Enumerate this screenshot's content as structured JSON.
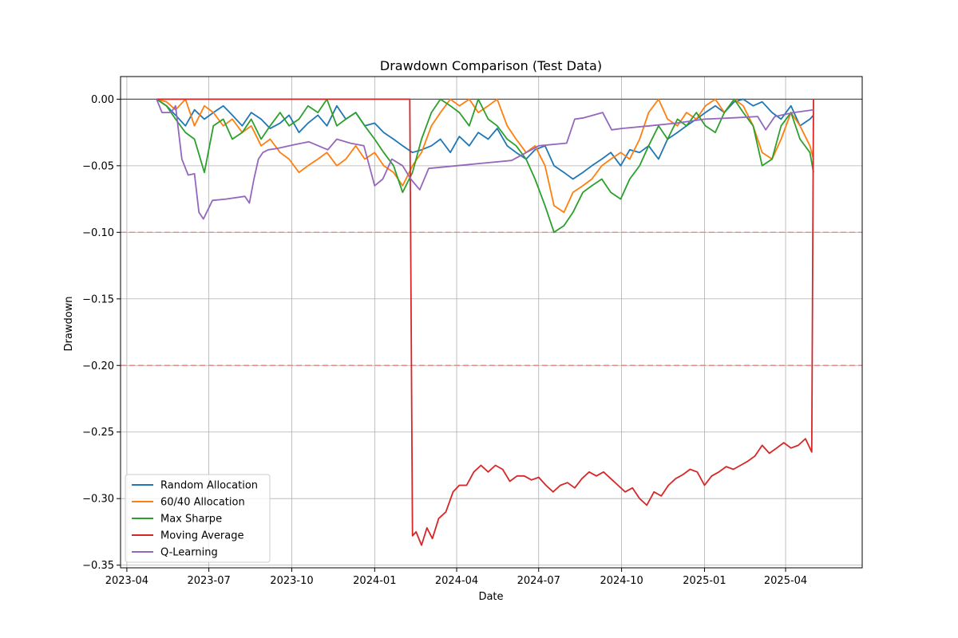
{
  "chart_data": {
    "type": "line",
    "title": "Drawdown Comparison (Test Data)",
    "xlabel": "Date",
    "ylabel": "Drawdown",
    "xlim": [
      "2023-03-25",
      "2025-06-25"
    ],
    "ylim": [
      -0.352,
      0.017
    ],
    "x_ticks": [
      {
        "date": "2023-04-01",
        "label": "2023-04"
      },
      {
        "date": "2023-07-01",
        "label": "2023-07"
      },
      {
        "date": "2023-10-01",
        "label": "2023-10"
      },
      {
        "date": "2024-01-01",
        "label": "2024-01"
      },
      {
        "date": "2024-04-01",
        "label": "2024-04"
      },
      {
        "date": "2024-07-01",
        "label": "2024-07"
      },
      {
        "date": "2024-10-01",
        "label": "2024-10"
      },
      {
        "date": "2025-01-01",
        "label": "2025-01"
      },
      {
        "date": "2025-04-01",
        "label": "2025-04"
      }
    ],
    "y_ticks": [
      {
        "value": 0.0,
        "label": "0.00"
      },
      {
        "value": -0.05,
        "label": "−0.05"
      },
      {
        "value": -0.1,
        "label": "−0.10"
      },
      {
        "value": -0.15,
        "label": "−0.15"
      },
      {
        "value": -0.2,
        "label": "−0.20"
      },
      {
        "value": -0.25,
        "label": "−0.25"
      },
      {
        "value": -0.3,
        "label": "−0.30"
      },
      {
        "value": -0.35,
        "label": "−0.35"
      }
    ],
    "grid": true,
    "legend_position": "lower-left",
    "reference_lines": [
      {
        "value": 0.0,
        "color": "#555555",
        "style": "solid"
      },
      {
        "value": -0.1,
        "color": "#e8898b",
        "style": "dashed"
      },
      {
        "value": -0.2,
        "color": "#e8898b",
        "style": "dashed"
      }
    ],
    "series": [
      {
        "name": "Random Allocation",
        "color": "#1f77b4",
        "x": [
          "2023-05-04",
          "2023-05-15",
          "2023-05-25",
          "2023-06-05",
          "2023-06-15",
          "2023-06-26",
          "2023-07-06",
          "2023-07-17",
          "2023-07-27",
          "2023-08-07",
          "2023-08-17",
          "2023-08-28",
          "2023-09-07",
          "2023-09-18",
          "2023-09-28",
          "2023-10-09",
          "2023-10-19",
          "2023-10-30",
          "2023-11-09",
          "2023-11-20",
          "2023-11-30",
          "2023-12-11",
          "2023-12-21",
          "2024-01-01",
          "2024-01-11",
          "2024-01-22",
          "2024-02-01",
          "2024-02-12",
          "2024-02-22",
          "2024-03-04",
          "2024-03-14",
          "2024-03-25",
          "2024-04-04",
          "2024-04-15",
          "2024-04-25",
          "2024-05-06",
          "2024-05-16",
          "2024-05-27",
          "2024-06-06",
          "2024-06-17",
          "2024-06-27",
          "2024-07-08",
          "2024-07-18",
          "2024-07-29",
          "2024-08-08",
          "2024-08-19",
          "2024-08-29",
          "2024-09-09",
          "2024-09-19",
          "2024-09-30",
          "2024-10-10",
          "2024-10-21",
          "2024-10-31",
          "2024-11-11",
          "2024-11-21",
          "2024-12-02",
          "2024-12-12",
          "2024-12-23",
          "2025-01-02",
          "2025-01-13",
          "2025-01-23",
          "2025-02-03",
          "2025-02-13",
          "2025-02-24",
          "2025-03-06",
          "2025-03-17",
          "2025-03-27",
          "2025-04-07",
          "2025-04-17",
          "2025-04-28",
          "2025-05-02"
        ],
        "values": [
          0.0,
          -0.005,
          -0.012,
          -0.02,
          -0.008,
          -0.015,
          -0.01,
          -0.005,
          -0.012,
          -0.02,
          -0.01,
          -0.015,
          -0.022,
          -0.018,
          -0.012,
          -0.025,
          -0.018,
          -0.012,
          -0.02,
          -0.005,
          -0.015,
          -0.01,
          -0.02,
          -0.018,
          -0.025,
          -0.03,
          -0.035,
          -0.04,
          -0.038,
          -0.035,
          -0.03,
          -0.04,
          -0.028,
          -0.035,
          -0.025,
          -0.03,
          -0.022,
          -0.035,
          -0.04,
          -0.045,
          -0.038,
          -0.035,
          -0.05,
          -0.055,
          -0.06,
          -0.055,
          -0.05,
          -0.045,
          -0.04,
          -0.05,
          -0.038,
          -0.04,
          -0.035,
          -0.045,
          -0.03,
          -0.025,
          -0.02,
          -0.015,
          -0.01,
          -0.005,
          -0.01,
          -0.002,
          0.0,
          -0.005,
          -0.002,
          -0.01,
          -0.015,
          -0.005,
          -0.02,
          -0.015,
          -0.012
        ]
      },
      {
        "name": "60/40 Allocation",
        "color": "#ff7f0e",
        "x": [
          "2023-05-04",
          "2023-05-15",
          "2023-05-25",
          "2023-06-05",
          "2023-06-15",
          "2023-06-26",
          "2023-07-06",
          "2023-07-17",
          "2023-07-27",
          "2023-08-07",
          "2023-08-17",
          "2023-08-28",
          "2023-09-07",
          "2023-09-18",
          "2023-09-28",
          "2023-10-09",
          "2023-10-19",
          "2023-10-30",
          "2023-11-09",
          "2023-11-20",
          "2023-11-30",
          "2023-12-11",
          "2023-12-21",
          "2024-01-01",
          "2024-01-11",
          "2024-01-22",
          "2024-02-01",
          "2024-02-12",
          "2024-02-22",
          "2024-03-04",
          "2024-03-14",
          "2024-03-25",
          "2024-04-04",
          "2024-04-15",
          "2024-04-25",
          "2024-05-06",
          "2024-05-16",
          "2024-05-27",
          "2024-06-06",
          "2024-06-17",
          "2024-06-27",
          "2024-07-08",
          "2024-07-18",
          "2024-07-29",
          "2024-08-08",
          "2024-08-19",
          "2024-08-29",
          "2024-09-09",
          "2024-09-19",
          "2024-09-30",
          "2024-10-10",
          "2024-10-21",
          "2024-10-31",
          "2024-11-11",
          "2024-11-21",
          "2024-12-02",
          "2024-12-12",
          "2024-12-23",
          "2025-01-02",
          "2025-01-13",
          "2025-01-23",
          "2025-02-03",
          "2025-02-13",
          "2025-02-24",
          "2025-03-06",
          "2025-03-17",
          "2025-03-27",
          "2025-04-07",
          "2025-04-17",
          "2025-04-28",
          "2025-05-02"
        ],
        "values": [
          0.0,
          -0.002,
          -0.008,
          0.0,
          -0.02,
          -0.005,
          -0.01,
          -0.02,
          -0.015,
          -0.025,
          -0.02,
          -0.035,
          -0.03,
          -0.04,
          -0.045,
          -0.055,
          -0.05,
          -0.045,
          -0.04,
          -0.05,
          -0.045,
          -0.035,
          -0.045,
          -0.04,
          -0.05,
          -0.055,
          -0.065,
          -0.05,
          -0.04,
          -0.02,
          -0.01,
          0.0,
          -0.005,
          0.0,
          -0.01,
          -0.005,
          0.0,
          -0.02,
          -0.03,
          -0.04,
          -0.035,
          -0.05,
          -0.08,
          -0.085,
          -0.07,
          -0.065,
          -0.06,
          -0.05,
          -0.045,
          -0.04,
          -0.045,
          -0.03,
          -0.01,
          0.0,
          -0.015,
          -0.02,
          -0.01,
          -0.015,
          -0.005,
          0.0,
          -0.01,
          0.0,
          -0.005,
          -0.02,
          -0.04,
          -0.045,
          -0.03,
          -0.01,
          -0.02,
          -0.035,
          -0.045
        ]
      },
      {
        "name": "Max Sharpe",
        "color": "#2ca02c",
        "x": [
          "2023-05-04",
          "2023-05-15",
          "2023-05-25",
          "2023-06-05",
          "2023-06-15",
          "2023-06-26",
          "2023-07-06",
          "2023-07-17",
          "2023-07-27",
          "2023-08-07",
          "2023-08-17",
          "2023-08-28",
          "2023-09-07",
          "2023-09-18",
          "2023-09-28",
          "2023-10-09",
          "2023-10-19",
          "2023-10-30",
          "2023-11-09",
          "2023-11-20",
          "2023-11-30",
          "2023-12-11",
          "2023-12-21",
          "2024-01-01",
          "2024-01-11",
          "2024-01-22",
          "2024-02-01",
          "2024-02-12",
          "2024-02-22",
          "2024-03-04",
          "2024-03-14",
          "2024-03-25",
          "2024-04-04",
          "2024-04-15",
          "2024-04-25",
          "2024-05-06",
          "2024-05-16",
          "2024-05-27",
          "2024-06-06",
          "2024-06-17",
          "2024-06-27",
          "2024-07-08",
          "2024-07-18",
          "2024-07-29",
          "2024-08-08",
          "2024-08-19",
          "2024-08-29",
          "2024-09-09",
          "2024-09-19",
          "2024-09-30",
          "2024-10-10",
          "2024-10-21",
          "2024-10-31",
          "2024-11-11",
          "2024-11-21",
          "2024-12-02",
          "2024-12-12",
          "2024-12-23",
          "2025-01-02",
          "2025-01-13",
          "2025-01-23",
          "2025-02-03",
          "2025-02-13",
          "2025-02-24",
          "2025-03-06",
          "2025-03-17",
          "2025-03-27",
          "2025-04-07",
          "2025-04-17",
          "2025-04-28",
          "2025-05-02"
        ],
        "values": [
          0.0,
          -0.005,
          -0.015,
          -0.025,
          -0.03,
          -0.055,
          -0.02,
          -0.015,
          -0.03,
          -0.025,
          -0.015,
          -0.03,
          -0.02,
          -0.01,
          -0.02,
          -0.015,
          -0.005,
          -0.01,
          0.0,
          -0.02,
          -0.015,
          -0.01,
          -0.02,
          -0.03,
          -0.04,
          -0.05,
          -0.07,
          -0.055,
          -0.03,
          -0.01,
          0.0,
          -0.005,
          -0.01,
          -0.02,
          0.0,
          -0.015,
          -0.02,
          -0.03,
          -0.035,
          -0.045,
          -0.06,
          -0.08,
          -0.1,
          -0.095,
          -0.085,
          -0.07,
          -0.065,
          -0.06,
          -0.07,
          -0.075,
          -0.06,
          -0.05,
          -0.035,
          -0.02,
          -0.03,
          -0.015,
          -0.02,
          -0.01,
          -0.02,
          -0.025,
          -0.01,
          0.0,
          -0.01,
          -0.02,
          -0.05,
          -0.045,
          -0.02,
          -0.01,
          -0.03,
          -0.04,
          -0.055
        ]
      },
      {
        "name": "Moving Average",
        "color": "#d62728",
        "x": [
          "2023-05-04",
          "2024-02-09",
          "2024-02-12",
          "2024-02-16",
          "2024-02-22",
          "2024-02-28",
          "2024-03-05",
          "2024-03-12",
          "2024-03-20",
          "2024-03-28",
          "2024-04-04",
          "2024-04-12",
          "2024-04-20",
          "2024-04-28",
          "2024-05-06",
          "2024-05-14",
          "2024-05-22",
          "2024-05-30",
          "2024-06-07",
          "2024-06-15",
          "2024-06-23",
          "2024-07-01",
          "2024-07-09",
          "2024-07-17",
          "2024-07-25",
          "2024-08-02",
          "2024-08-10",
          "2024-08-18",
          "2024-08-26",
          "2024-09-03",
          "2024-09-11",
          "2024-09-19",
          "2024-09-27",
          "2024-10-05",
          "2024-10-13",
          "2024-10-21",
          "2024-10-29",
          "2024-11-06",
          "2024-11-14",
          "2024-11-22",
          "2024-11-30",
          "2024-12-08",
          "2024-12-16",
          "2024-12-24",
          "2025-01-01",
          "2025-01-09",
          "2025-01-17",
          "2025-01-25",
          "2025-02-02",
          "2025-02-10",
          "2025-02-18",
          "2025-02-26",
          "2025-03-06",
          "2025-03-14",
          "2025-03-22",
          "2025-03-30",
          "2025-04-07",
          "2025-04-15",
          "2025-04-23",
          "2025-04-30",
          "2025-05-02"
        ],
        "values": [
          0.0,
          0.0,
          -0.328,
          -0.325,
          -0.335,
          -0.322,
          -0.33,
          -0.315,
          -0.31,
          -0.295,
          -0.29,
          -0.29,
          -0.28,
          -0.275,
          -0.28,
          -0.275,
          -0.278,
          -0.287,
          -0.283,
          -0.283,
          -0.286,
          -0.284,
          -0.29,
          -0.295,
          -0.29,
          -0.288,
          -0.292,
          -0.285,
          -0.28,
          -0.283,
          -0.28,
          -0.285,
          -0.29,
          -0.295,
          -0.292,
          -0.3,
          -0.305,
          -0.295,
          -0.298,
          -0.29,
          -0.285,
          -0.282,
          -0.278,
          -0.28,
          -0.29,
          -0.283,
          -0.28,
          -0.276,
          -0.278,
          -0.275,
          -0.272,
          -0.268,
          -0.26,
          -0.266,
          -0.262,
          -0.258,
          -0.262,
          -0.26,
          -0.255,
          -0.265,
          0.0
        ]
      },
      {
        "name": "Q-Learning",
        "color": "#9467bd",
        "x": [
          "2023-05-04",
          "2023-05-10",
          "2023-05-20",
          "2023-05-25",
          "2023-06-01",
          "2023-06-08",
          "2023-06-15",
          "2023-06-20",
          "2023-06-25",
          "2023-07-05",
          "2023-07-20",
          "2023-08-10",
          "2023-08-15",
          "2023-08-20",
          "2023-08-25",
          "2023-08-30",
          "2023-09-05",
          "2023-09-15",
          "2023-10-05",
          "2023-10-20",
          "2023-11-10",
          "2023-11-20",
          "2023-12-05",
          "2023-12-20",
          "2024-01-01",
          "2024-01-10",
          "2024-01-20",
          "2024-02-01",
          "2024-02-10",
          "2024-02-20",
          "2024-03-01",
          "2024-04-01",
          "2024-05-01",
          "2024-06-01",
          "2024-07-01",
          "2024-08-01",
          "2024-08-10",
          "2024-08-20",
          "2024-09-10",
          "2024-09-20",
          "2024-10-01",
          "2024-11-01",
          "2024-12-01",
          "2025-01-01",
          "2025-02-01",
          "2025-03-01",
          "2025-03-10",
          "2025-03-20",
          "2025-04-10",
          "2025-05-02"
        ],
        "values": [
          0.0,
          -0.01,
          -0.01,
          -0.005,
          -0.045,
          -0.057,
          -0.056,
          -0.085,
          -0.09,
          -0.076,
          -0.075,
          -0.073,
          -0.078,
          -0.06,
          -0.045,
          -0.04,
          -0.038,
          -0.037,
          -0.034,
          -0.032,
          -0.038,
          -0.03,
          -0.033,
          -0.035,
          -0.065,
          -0.06,
          -0.045,
          -0.05,
          -0.06,
          -0.068,
          -0.052,
          -0.05,
          -0.048,
          -0.046,
          -0.035,
          -0.033,
          -0.015,
          -0.014,
          -0.01,
          -0.023,
          -0.022,
          -0.02,
          -0.018,
          -0.015,
          -0.014,
          -0.013,
          -0.023,
          -0.013,
          -0.01,
          -0.008
        ]
      }
    ]
  }
}
